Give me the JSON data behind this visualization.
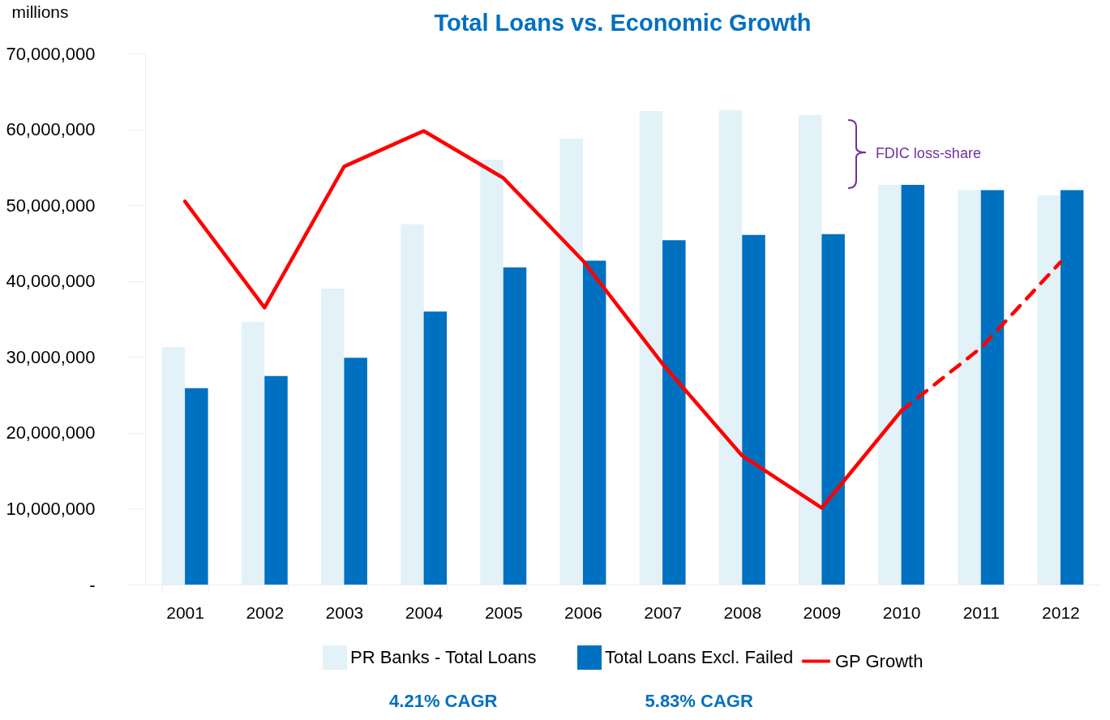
{
  "chart_data": {
    "type": "bar",
    "title": "Total Loans vs. Economic Growth",
    "ylabel": "millions",
    "categories": [
      "2001",
      "2002",
      "2003",
      "2004",
      "2005",
      "2006",
      "2007",
      "2008",
      "2009",
      "2010",
      "2011",
      "2012"
    ],
    "series": [
      {
        "name": "PR Banks - Total Loans",
        "color": "#e3f1f8",
        "values": [
          31300000,
          34600000,
          39000000,
          47500000,
          56000000,
          58800000,
          62400000,
          62500000,
          61900000,
          52700000,
          52000000,
          51300000
        ]
      },
      {
        "name": "Total Loans Excl. Failed",
        "color": "#0070c0",
        "values": [
          25900000,
          27500000,
          29900000,
          36000000,
          41800000,
          42700000,
          45400000,
          46100000,
          46200000,
          52700000,
          52000000,
          52000000
        ]
      },
      {
        "name": "GP Growth",
        "type": "line",
        "color": "#ff0000",
        "line_style": "solid",
        "values": [
          50500000,
          36500000,
          55100000,
          59800000,
          53600000,
          42700000,
          29100000,
          17000000,
          10100000,
          22900000,
          null,
          null
        ]
      },
      {
        "type": "line",
        "color": "#ff0000",
        "line_style": "dashed",
        "values": [
          null,
          null,
          null,
          null,
          null,
          null,
          null,
          null,
          null,
          22900000,
          31200000,
          42500000
        ]
      }
    ],
    "ylim": [
      0,
      70000000
    ],
    "yticks": [
      {
        "value": 0,
        "label": "-"
      },
      {
        "value": 10000000,
        "label": "10,000,000"
      },
      {
        "value": 20000000,
        "label": "20,000,000"
      },
      {
        "value": 30000000,
        "label": "30,000,000"
      },
      {
        "value": 40000000,
        "label": "40,000,000"
      },
      {
        "value": 50000000,
        "label": "50,000,000"
      },
      {
        "value": 60000000,
        "label": "60,000,000"
      },
      {
        "value": 70000000,
        "label": "70,000,000"
      }
    ],
    "grid": false,
    "legend": "bottom",
    "annotations": [
      "FDIC loss-share",
      "4.21% CAGR",
      "5.83% CAGR"
    ]
  }
}
